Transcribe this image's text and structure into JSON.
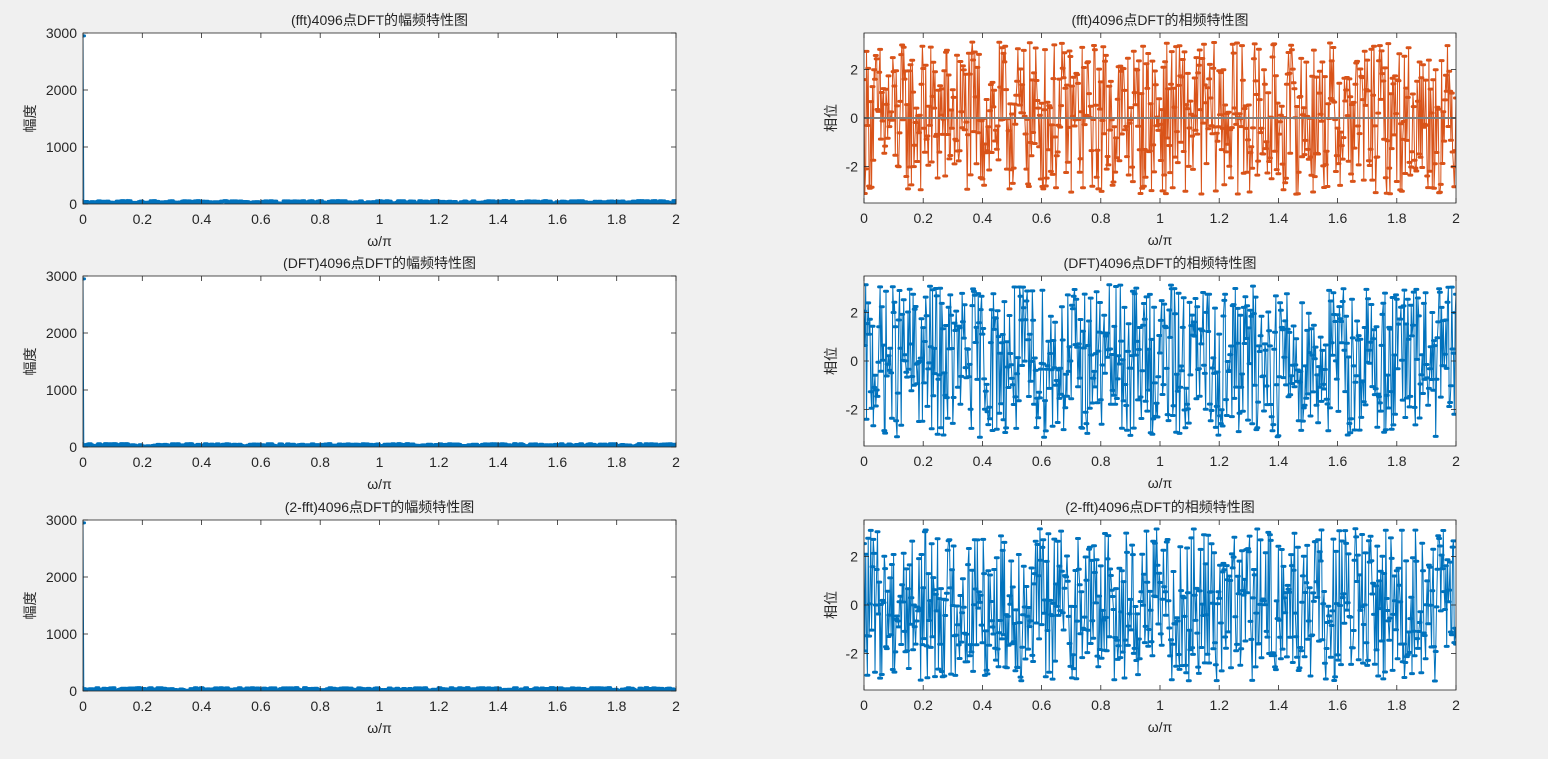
{
  "colors": {
    "figure_bg": "#f0f0f0",
    "axes_bg": "#ffffff",
    "axis": "#262626",
    "blue": "#0072bd",
    "orange": "#d95319",
    "gray_line": "#7f7f7f"
  },
  "chart_data": [
    {
      "type": "line",
      "title": "(fft)4096点DFT的幅频特性图",
      "xlabel": "ω/π",
      "ylabel": "幅度",
      "xlim": [
        0,
        2
      ],
      "ylim": [
        0,
        3000
      ],
      "xticks": [
        "0",
        "0.2",
        "0.4",
        "0.6",
        "0.8",
        "1",
        "1.2",
        "1.4",
        "1.6",
        "1.8",
        "2"
      ],
      "yticks": [
        "0",
        "1000",
        "2000",
        "3000"
      ],
      "grid": false,
      "series": [
        {
          "color": "#0072bd",
          "marker": "dot",
          "peak_value": 2950,
          "baseline_range": [
            0,
            60
          ]
        }
      ]
    },
    {
      "type": "line",
      "title": "(fft)4096点DFT的相频特性图",
      "xlabel": "ω/π",
      "ylabel": "相位",
      "xlim": [
        0,
        2
      ],
      "ylim": [
        -3.5,
        3.5
      ],
      "xticks": [
        "0",
        "0.2",
        "0.4",
        "0.6",
        "0.8",
        "1",
        "1.2",
        "1.4",
        "1.6",
        "1.8",
        "2"
      ],
      "yticks": [
        "-2",
        "0",
        "2"
      ],
      "grid": false,
      "series": [
        {
          "color": "#d95319",
          "marker": "dot",
          "range": [
            -3.1416,
            3.1416
          ]
        },
        {
          "color": "#7f7f7f",
          "marker": "none",
          "constant": 0
        }
      ]
    },
    {
      "type": "line",
      "title": "(DFT)4096点DFT的幅频特性图",
      "xlabel": "ω/π",
      "ylabel": "幅度",
      "xlim": [
        0,
        2
      ],
      "ylim": [
        0,
        3000
      ],
      "xticks": [
        "0",
        "0.2",
        "0.4",
        "0.6",
        "0.8",
        "1",
        "1.2",
        "1.4",
        "1.6",
        "1.8",
        "2"
      ],
      "yticks": [
        "0",
        "1000",
        "2000",
        "3000"
      ],
      "grid": false,
      "series": [
        {
          "color": "#0072bd",
          "marker": "dot",
          "peak_value": 2950,
          "baseline_range": [
            0,
            60
          ]
        }
      ]
    },
    {
      "type": "line",
      "title": "(DFT)4096点DFT的相频特性图",
      "xlabel": "ω/π",
      "ylabel": "相位",
      "xlim": [
        0,
        2
      ],
      "ylim": [
        -3.5,
        3.5
      ],
      "xticks": [
        "0",
        "0.2",
        "0.4",
        "0.6",
        "0.8",
        "1",
        "1.2",
        "1.4",
        "1.6",
        "1.8",
        "2"
      ],
      "yticks": [
        "-2",
        "0",
        "2"
      ],
      "grid": false,
      "series": [
        {
          "color": "#0072bd",
          "marker": "dot",
          "range": [
            -3.1416,
            3.1416
          ]
        }
      ]
    },
    {
      "type": "line",
      "title": "(2-fft)4096点DFT的幅频特性图",
      "xlabel": "ω/π",
      "ylabel": "幅度",
      "xlim": [
        0,
        2
      ],
      "ylim": [
        0,
        3000
      ],
      "xticks": [
        "0",
        "0.2",
        "0.4",
        "0.6",
        "0.8",
        "1",
        "1.2",
        "1.4",
        "1.6",
        "1.8",
        "2"
      ],
      "yticks": [
        "0",
        "1000",
        "2000",
        "3000"
      ],
      "grid": false,
      "series": [
        {
          "color": "#0072bd",
          "marker": "dot",
          "peak_value": 2950,
          "baseline_range": [
            0,
            60
          ]
        }
      ]
    },
    {
      "type": "line",
      "title": "(2-fft)4096点DFT的相频特性图",
      "xlabel": "ω/π",
      "ylabel": "相位",
      "xlim": [
        0,
        2
      ],
      "ylim": [
        -3.5,
        3.5
      ],
      "xticks": [
        "0",
        "0.2",
        "0.4",
        "0.6",
        "0.8",
        "1",
        "1.2",
        "1.4",
        "1.6",
        "1.8",
        "2"
      ],
      "yticks": [
        "-2",
        "0",
        "2"
      ],
      "grid": false,
      "series": [
        {
          "color": "#0072bd",
          "marker": "dot",
          "range": [
            -3.1416,
            3.1416
          ]
        }
      ]
    }
  ]
}
